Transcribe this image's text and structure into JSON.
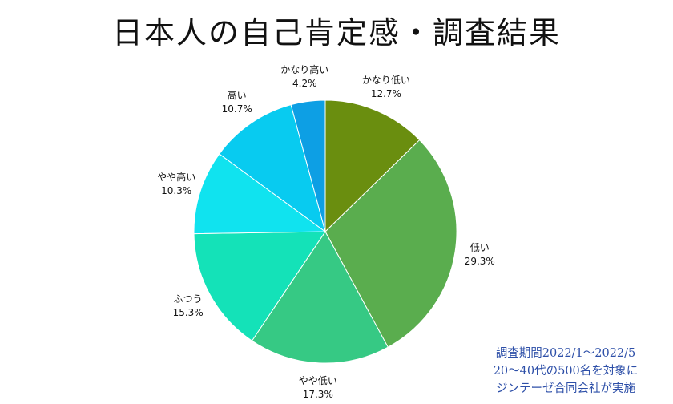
{
  "chart_data": {
    "type": "pie",
    "title": "日本人の自己肯定感・調査結果",
    "slices": [
      {
        "label": "かなり低い",
        "value": 12.7,
        "value_label": "12.7%",
        "color": "#6a8e0f"
      },
      {
        "label": "低い",
        "value": 29.3,
        "value_label": "29.3%",
        "color": "#5aad4e"
      },
      {
        "label": "やや低い",
        "value": 17.3,
        "value_label": "17.3%",
        "color": "#36c984"
      },
      {
        "label": "ふつう",
        "value": 15.3,
        "value_label": "15.3%",
        "color": "#14e2b8"
      },
      {
        "label": "やや高い",
        "value": 10.3,
        "value_label": "10.3%",
        "color": "#10e3ef"
      },
      {
        "label": "高い",
        "value": 10.7,
        "value_label": "10.7%",
        "color": "#08cbf0"
      },
      {
        "label": "かなり高い",
        "value": 4.2,
        "value_label": "4.2%",
        "color": "#0d9fe4"
      }
    ],
    "start": "top",
    "direction": "clockwise"
  },
  "footnote": {
    "lines": [
      "調査期間2022/1～2022/5",
      "20～40代の500名を対象に",
      "ジンテーゼ合同会社が実施"
    ]
  }
}
